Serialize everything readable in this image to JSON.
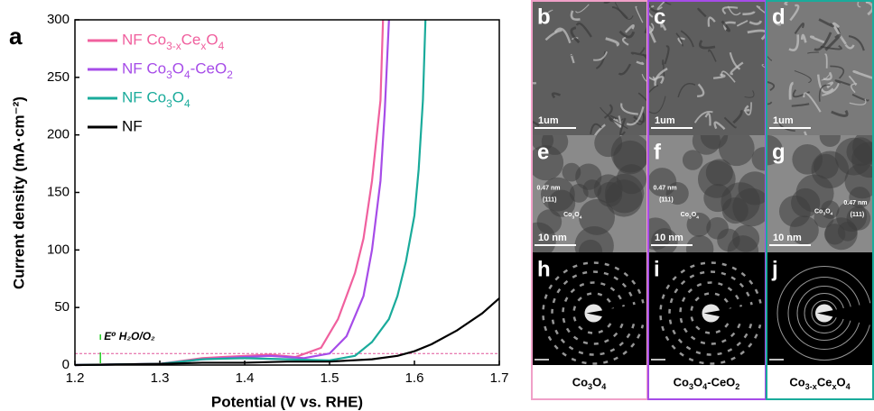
{
  "chart_data": {
    "type": "line",
    "panel_label": "a",
    "x_label": "Potential (V vs. RHE)",
    "y_label": "Current density (mA·cm⁻²)",
    "xlim": [
      1.2,
      1.7
    ],
    "ylim": [
      0,
      300
    ],
    "xticks": [
      1.2,
      1.3,
      1.4,
      1.5,
      1.6,
      1.7
    ],
    "yticks": [
      0,
      50,
      100,
      150,
      200,
      250,
      300
    ],
    "reference_y": 10,
    "reference_color": "#e0559a",
    "reference_x": 1.23,
    "reference_x_color": "#22cc22",
    "annotation": "E⁰ H₂O/O₂",
    "series": [
      {
        "name": "NF Co3-xCexO4",
        "color": "#f0609e",
        "x": [
          1.2,
          1.3,
          1.35,
          1.4,
          1.43,
          1.46,
          1.49,
          1.51,
          1.53,
          1.54,
          1.55,
          1.56,
          1.563
        ],
        "values": [
          0,
          1,
          6,
          8,
          9,
          7,
          15,
          40,
          80,
          110,
          160,
          230,
          300
        ]
      },
      {
        "name": "NF Co3O4-CeO2",
        "color": "#a64ce8",
        "x": [
          1.2,
          1.3,
          1.35,
          1.4,
          1.43,
          1.47,
          1.5,
          1.52,
          1.54,
          1.55,
          1.56,
          1.565,
          1.57
        ],
        "values": [
          0,
          1,
          5,
          7,
          8,
          6,
          10,
          25,
          60,
          100,
          160,
          220,
          300
        ]
      },
      {
        "name": "NF Co3O4",
        "color": "#1aab9b",
        "x": [
          1.2,
          1.3,
          1.35,
          1.4,
          1.45,
          1.5,
          1.53,
          1.55,
          1.57,
          1.58,
          1.59,
          1.6,
          1.605,
          1.61,
          1.613
        ],
        "values": [
          0,
          1,
          5,
          6,
          5,
          4,
          8,
          20,
          40,
          60,
          90,
          130,
          170,
          230,
          300
        ]
      },
      {
        "name": "NF",
        "color": "#000000",
        "x": [
          1.2,
          1.3,
          1.35,
          1.4,
          1.45,
          1.5,
          1.55,
          1.58,
          1.6,
          1.62,
          1.65,
          1.68,
          1.7
        ],
        "values": [
          0,
          1,
          2,
          2,
          3,
          3,
          5,
          8,
          12,
          18,
          30,
          45,
          58
        ]
      }
    ]
  },
  "panels": [
    {
      "label": "b",
      "kind": "sem",
      "scale_bar": "1um",
      "texts": []
    },
    {
      "label": "c",
      "kind": "sem",
      "scale_bar": "1um",
      "texts": []
    },
    {
      "label": "d",
      "kind": "sem",
      "scale_bar": "1um",
      "texts": []
    },
    {
      "label": "e",
      "kind": "tem",
      "scale_bar": "10 nm",
      "texts": [
        "0.47 nm",
        "(111)",
        "Co3O4"
      ]
    },
    {
      "label": "f",
      "kind": "tem",
      "scale_bar": "10 nm",
      "texts": [
        "0.47 nm",
        "(111)",
        "Co3O4"
      ]
    },
    {
      "label": "g",
      "kind": "tem",
      "scale_bar": "10 nm",
      "texts": [
        "Co3O4",
        "0.47 nm",
        "(111)"
      ]
    },
    {
      "label": "h",
      "kind": "saed",
      "texts": []
    },
    {
      "label": "i",
      "kind": "saed",
      "texts": []
    },
    {
      "label": "j",
      "kind": "saed",
      "texts": []
    }
  ],
  "captions": [
    "Co3O4",
    "Co3O4-CeO2",
    "Co3-xCexO4"
  ],
  "column_colors": [
    "#f0a0c8",
    "#a64ce8",
    "#1aab9b"
  ]
}
